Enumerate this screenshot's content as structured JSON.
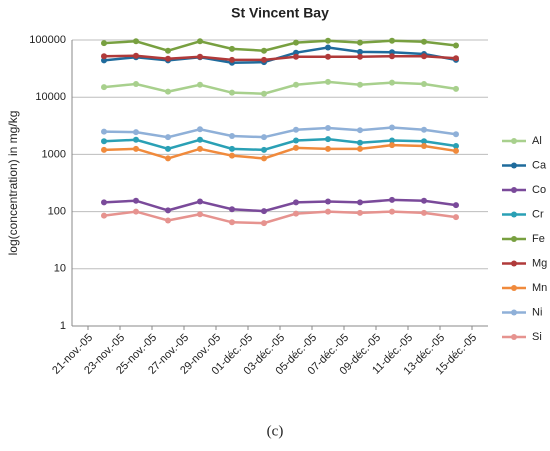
{
  "chart_data": {
    "type": "line",
    "title": "St Vincent Bay",
    "y_label": "log(concentration) in mg/kg",
    "caption": "(c)",
    "log_y": true,
    "grid": true,
    "legend": "right",
    "x": [
      "2005-11-22",
      "2005-11-24",
      "2005-11-26",
      "2005-11-28",
      "2005-11-30",
      "2005-12-02",
      "2005-12-04",
      "2005-12-06",
      "2005-12-08",
      "2005-12-10",
      "2005-12-12",
      "2005-12-14"
    ],
    "xlim": [
      "2005-11-20",
      "2005-12-16"
    ],
    "xticks": [
      {
        "value": "2005-11-21",
        "label": "21-nov.-05"
      },
      {
        "value": "2005-11-23",
        "label": "23-nov.-05"
      },
      {
        "value": "2005-11-25",
        "label": "25-nov.-05"
      },
      {
        "value": "2005-11-27",
        "label": "27-nov.-05"
      },
      {
        "value": "2005-11-29",
        "label": "29-nov.-05"
      },
      {
        "value": "2005-12-01",
        "label": "01-déc.-05"
      },
      {
        "value": "2005-12-03",
        "label": "03-déc.-05"
      },
      {
        "value": "2005-12-05",
        "label": "05-déc.-05"
      },
      {
        "value": "2005-12-07",
        "label": "07-déc.-05"
      },
      {
        "value": "2005-12-09",
        "label": "09-déc.-05"
      },
      {
        "value": "2005-12-11",
        "label": "11-déc.-05"
      },
      {
        "value": "2005-12-13",
        "label": "13-déc.-05"
      },
      {
        "value": "2005-12-15",
        "label": "15-déc.-05"
      }
    ],
    "ylim": [
      1,
      100000
    ],
    "yticks": [
      1,
      10,
      100,
      1000,
      10000,
      100000
    ],
    "series": [
      {
        "name": "Al",
        "color": "#a8d08d",
        "values": [
          15000,
          17000,
          12500,
          16500,
          12000,
          11500,
          16500,
          18500,
          16500,
          18000,
          17000,
          14000
        ]
      },
      {
        "name": "Ca",
        "color": "#1f6b9c",
        "values": [
          44000,
          50000,
          44000,
          50000,
          40000,
          41000,
          60000,
          74000,
          62000,
          61000,
          57000,
          45000
        ]
      },
      {
        "name": "Co",
        "color": "#7a4a9a",
        "values": [
          145,
          155,
          105,
          150,
          110,
          102,
          145,
          150,
          145,
          160,
          155,
          130
        ]
      },
      {
        "name": "Cr",
        "color": "#2aa0b5",
        "values": [
          1700,
          1800,
          1250,
          1800,
          1250,
          1200,
          1750,
          1850,
          1600,
          1750,
          1700,
          1400
        ]
      },
      {
        "name": "Fe",
        "color": "#78a040",
        "values": [
          88000,
          95000,
          65000,
          95000,
          70000,
          65000,
          90000,
          97000,
          90000,
          97000,
          93000,
          80000
        ]
      },
      {
        "name": "Mg",
        "color": "#b03a3a",
        "values": [
          52000,
          53000,
          47000,
          51000,
          45000,
          45000,
          51000,
          51000,
          51000,
          52000,
          52000,
          48000
        ]
      },
      {
        "name": "Mn",
        "color": "#f08a3c",
        "values": [
          1200,
          1250,
          850,
          1250,
          950,
          850,
          1300,
          1250,
          1250,
          1450,
          1400,
          1150
        ]
      },
      {
        "name": "Ni",
        "color": "#8fb0d8",
        "values": [
          2500,
          2450,
          2000,
          2750,
          2100,
          2000,
          2700,
          2900,
          2650,
          2950,
          2700,
          2250
        ]
      },
      {
        "name": "Si",
        "color": "#e6938f",
        "values": [
          85,
          100,
          70,
          90,
          65,
          63,
          92,
          100,
          95,
          100,
          95,
          80
        ]
      }
    ]
  }
}
